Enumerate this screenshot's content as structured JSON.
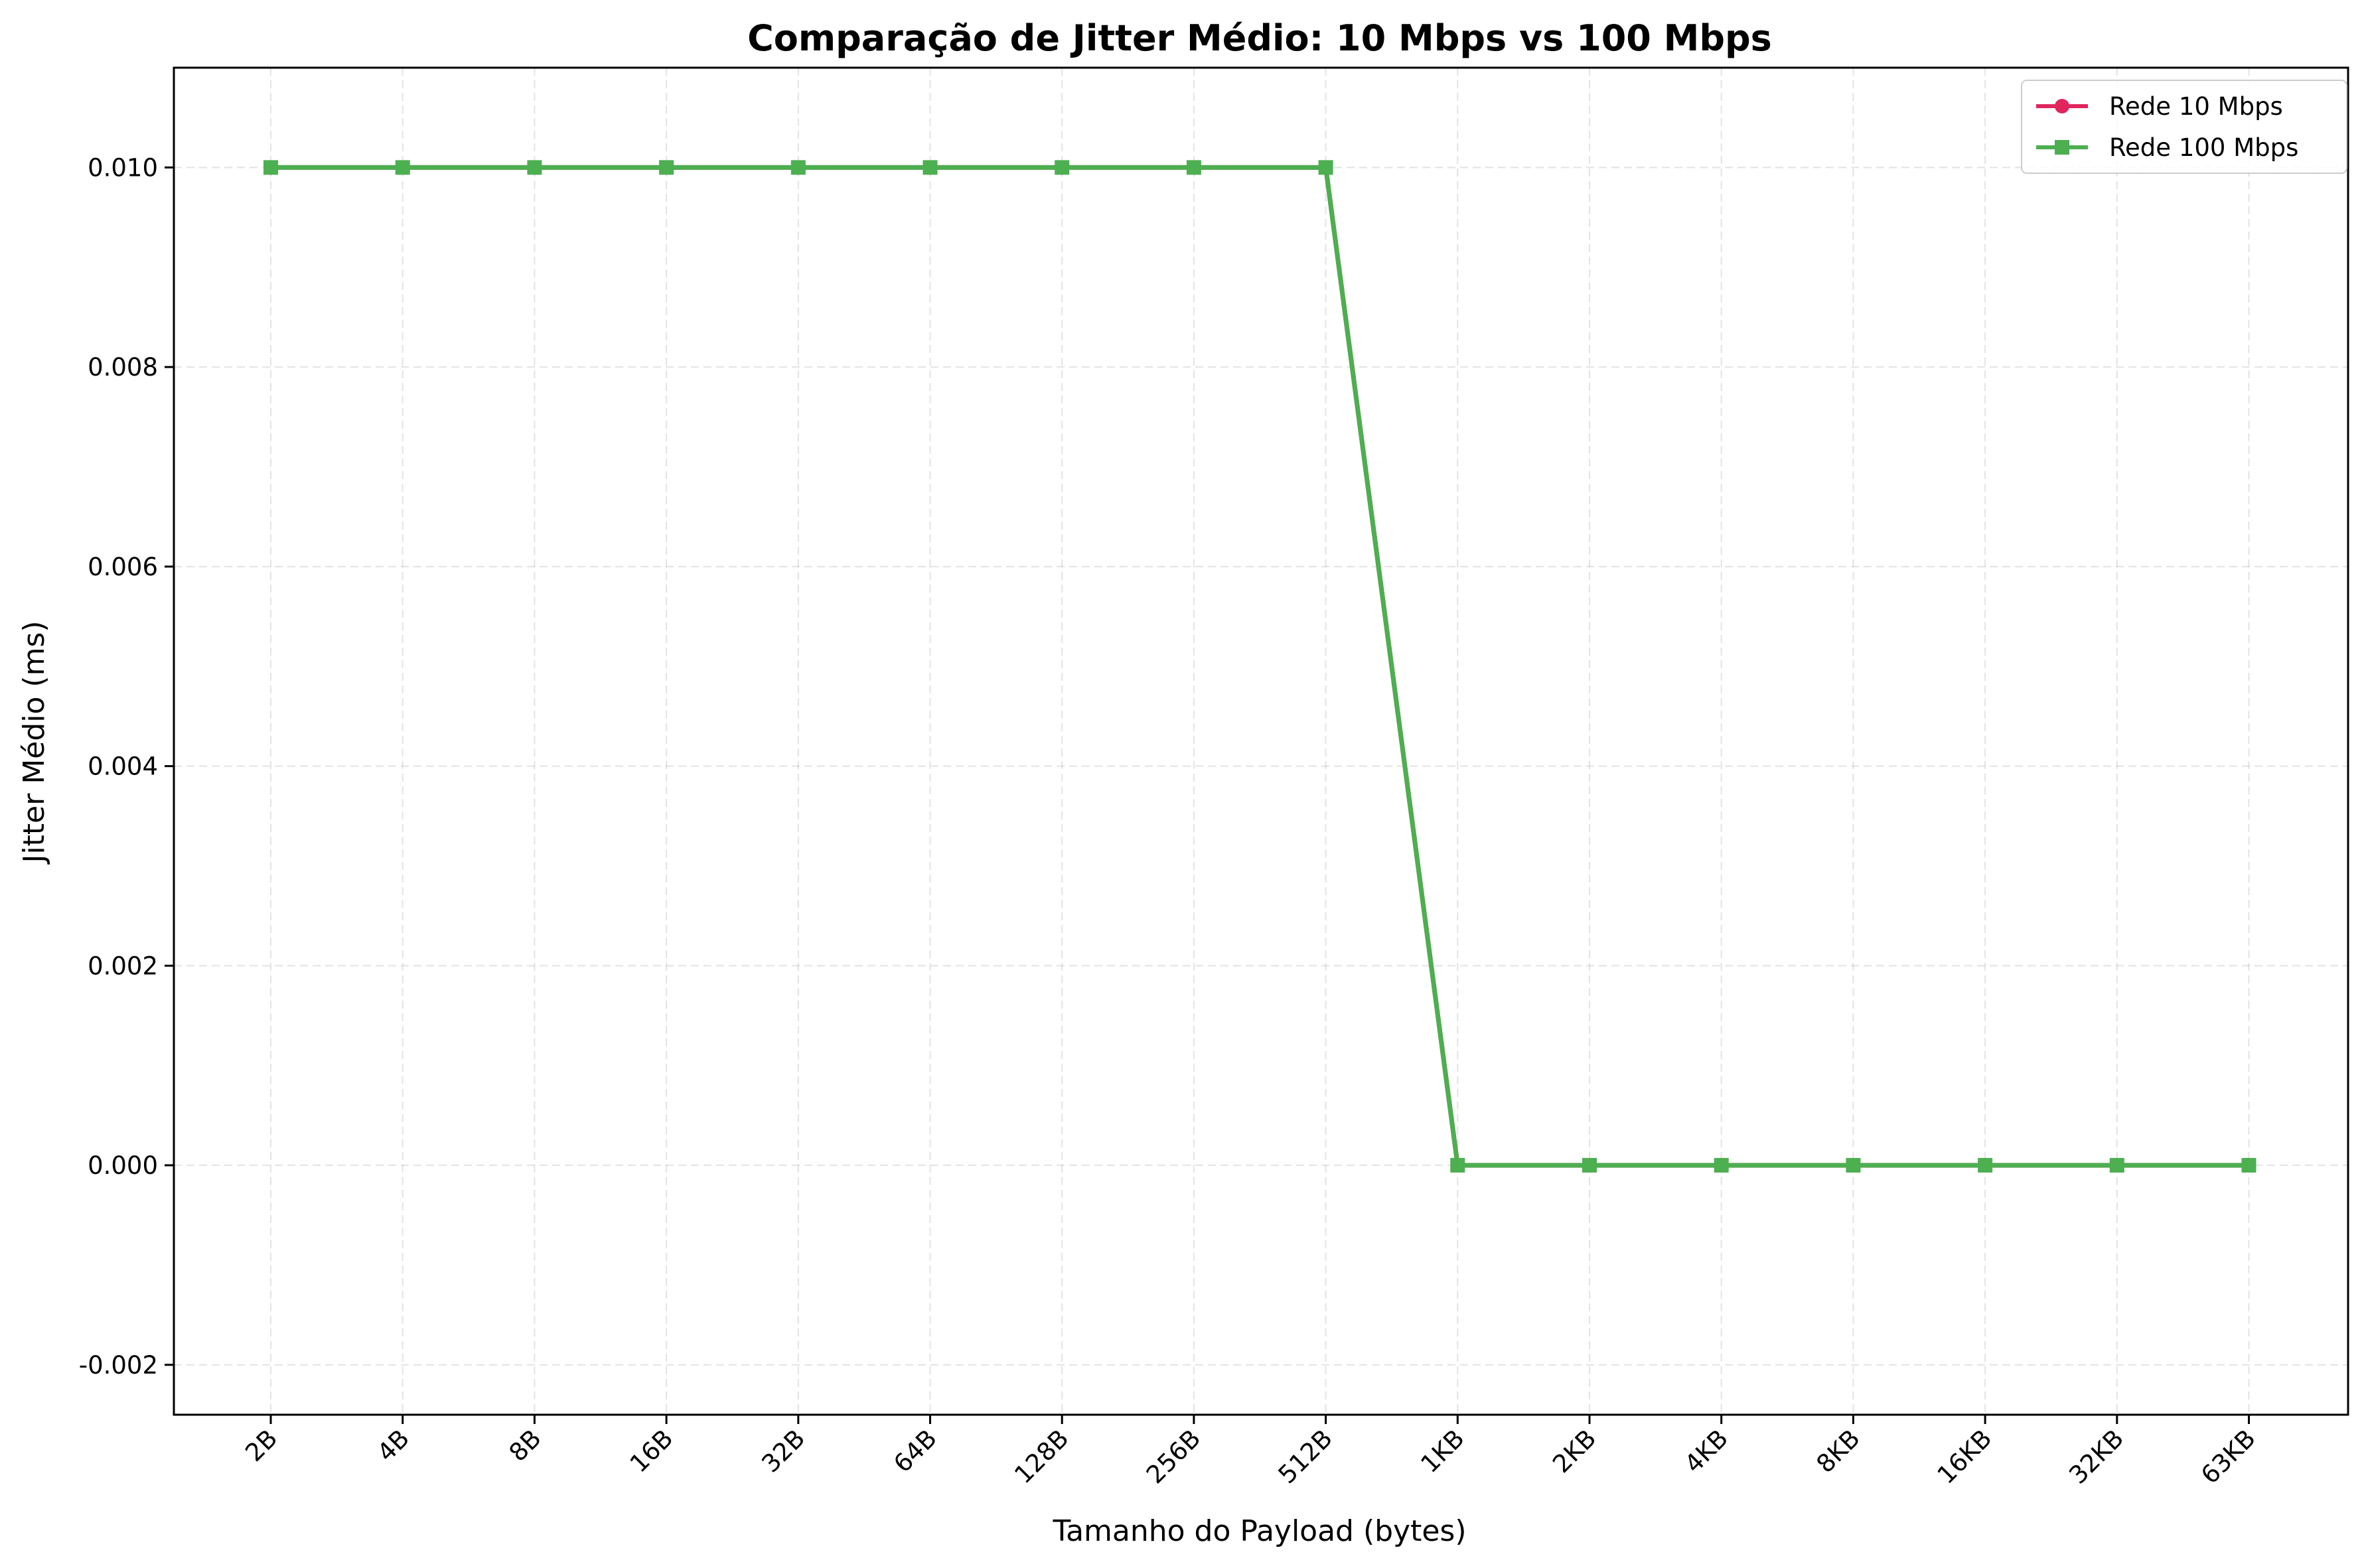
{
  "chart_data": {
    "type": "line",
    "title": "Comparação de Jitter Médio: 10 Mbps vs 100 Mbps",
    "xlabel": "Tamanho do Payload (bytes)",
    "ylabel": "Jitter Médio (ms)",
    "categories": [
      "2B",
      "4B",
      "8B",
      "16B",
      "32B",
      "64B",
      "128B",
      "256B",
      "512B",
      "1KB",
      "2KB",
      "4KB",
      "8KB",
      "16KB",
      "32KB",
      "63KB"
    ],
    "series": [
      {
        "name": "Rede 10 Mbps",
        "color": "#e0245e",
        "marker": "circle",
        "values": [
          0.01,
          0.01,
          0.01,
          0.01,
          0.01,
          0.01,
          0.01,
          0.01,
          0.01,
          0.0,
          0.0,
          0.0,
          0.0,
          0.0,
          0.0,
          0.0
        ]
      },
      {
        "name": "Rede 100 Mbps",
        "color": "#4caf50",
        "marker": "square",
        "values": [
          0.01,
          0.01,
          0.01,
          0.01,
          0.01,
          0.01,
          0.01,
          0.01,
          0.01,
          0.0,
          0.0,
          0.0,
          0.0,
          0.0,
          0.0,
          0.0
        ]
      }
    ],
    "ylim": [
      -0.0025,
      0.011
    ],
    "yticks": [
      -0.002,
      0.0,
      0.002,
      0.004,
      0.006,
      0.008,
      0.01
    ],
    "ytick_labels": [
      "-0.002",
      "0.000",
      "0.002",
      "0.004",
      "0.006",
      "0.008",
      "0.010"
    ],
    "grid": true,
    "legend_position": "top-right"
  }
}
